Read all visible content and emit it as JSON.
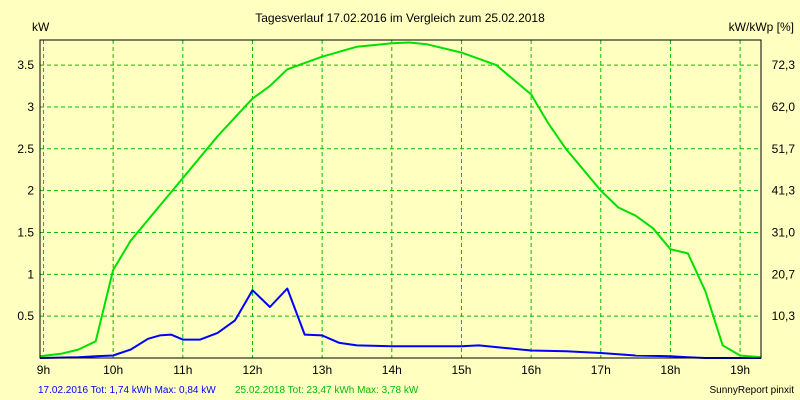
{
  "chart_data": {
    "type": "line",
    "title": "Tagesverlauf 17.02.2016 im Vergleich zum 25.02.2018",
    "ylabel_left": "kW",
    "ylabel_right": "kW/kWp [%]",
    "xlim": [
      8.95,
      19.3
    ],
    "ylim": [
      0,
      3.8
    ],
    "grid": true,
    "x_ticks": [
      {
        "value": 9,
        "label": "9h"
      },
      {
        "value": 10,
        "label": "10h"
      },
      {
        "value": 11,
        "label": "11h"
      },
      {
        "value": 12,
        "label": "12h"
      },
      {
        "value": 13,
        "label": "13h"
      },
      {
        "value": 14,
        "label": "14h"
      },
      {
        "value": 15,
        "label": "15h"
      },
      {
        "value": 16,
        "label": "16h"
      },
      {
        "value": 17,
        "label": "17h"
      },
      {
        "value": 18,
        "label": "18h"
      },
      {
        "value": 19,
        "label": "19h"
      }
    ],
    "y_ticks_left": [
      {
        "value": 0.5,
        "label": "0.5"
      },
      {
        "value": 1,
        "label": "1"
      },
      {
        "value": 1.5,
        "label": "1.5"
      },
      {
        "value": 2,
        "label": "2"
      },
      {
        "value": 2.5,
        "label": "2.5"
      },
      {
        "value": 3,
        "label": "3"
      },
      {
        "value": 3.5,
        "label": "3.5"
      }
    ],
    "y_ticks_right": [
      {
        "value": 0.5,
        "label": "10,3"
      },
      {
        "value": 1,
        "label": "20,7"
      },
      {
        "value": 1.5,
        "label": "31,0"
      },
      {
        "value": 2,
        "label": "41,3"
      },
      {
        "value": 2.5,
        "label": "51,7"
      },
      {
        "value": 3,
        "label": "62,0"
      },
      {
        "value": 3.5,
        "label": "72,3"
      }
    ],
    "series": [
      {
        "name": "17.02.2016",
        "color": "#0000ff",
        "x": [
          8.95,
          9.5,
          9.75,
          10.0,
          10.25,
          10.5,
          10.67,
          10.83,
          11.0,
          11.25,
          11.5,
          11.75,
          12.0,
          12.25,
          12.5,
          12.75,
          13.0,
          13.25,
          13.5,
          14.0,
          14.5,
          15.0,
          15.25,
          15.5,
          16.0,
          16.5,
          17.0,
          17.5,
          18.0,
          18.25,
          18.5,
          19.0,
          19.3
        ],
        "values": [
          0.0,
          0.01,
          0.02,
          0.03,
          0.1,
          0.23,
          0.27,
          0.28,
          0.22,
          0.22,
          0.3,
          0.45,
          0.81,
          0.61,
          0.83,
          0.28,
          0.27,
          0.18,
          0.15,
          0.14,
          0.14,
          0.14,
          0.15,
          0.13,
          0.09,
          0.08,
          0.06,
          0.03,
          0.02,
          0.01,
          0.0,
          0.0,
          0.0
        ]
      },
      {
        "name": "25.02.2018",
        "color": "#00e000",
        "x": [
          8.95,
          9.25,
          9.5,
          9.75,
          10.0,
          10.25,
          10.5,
          11.0,
          11.5,
          12.0,
          12.25,
          12.5,
          13.0,
          13.5,
          14.0,
          14.25,
          14.5,
          15.0,
          15.5,
          16.0,
          16.25,
          16.5,
          17.0,
          17.25,
          17.5,
          17.75,
          18.0,
          18.25,
          18.5,
          18.75,
          19.0,
          19.3
        ],
        "values": [
          0.02,
          0.05,
          0.1,
          0.2,
          1.05,
          1.4,
          1.65,
          2.15,
          2.65,
          3.1,
          3.25,
          3.45,
          3.6,
          3.72,
          3.76,
          3.77,
          3.75,
          3.65,
          3.5,
          3.15,
          2.8,
          2.5,
          2.0,
          1.8,
          1.7,
          1.55,
          1.3,
          1.25,
          0.8,
          0.15,
          0.03,
          0.01
        ]
      }
    ],
    "footer": {
      "series1_text": "17.02.2016 Tot: 1,74 kWh Max: 0,84 kW",
      "series2_text": "25.02.2018 Tot: 23,47 kWh Max: 3,78 kW",
      "brand_text": "SunnyReport pinxit"
    }
  }
}
